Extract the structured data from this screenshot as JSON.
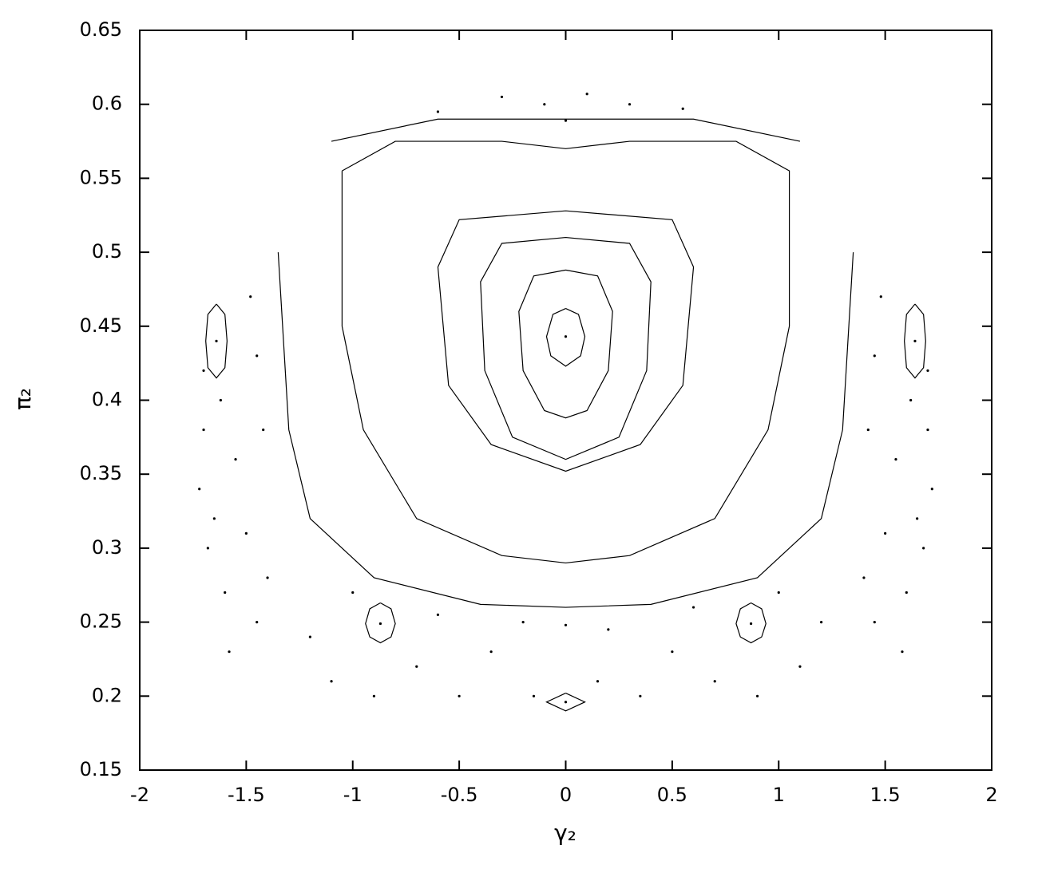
{
  "chart_data": {
    "type": "scatter",
    "xlabel": "γ₂",
    "ylabel": "π₂",
    "xlim": [
      -2,
      2
    ],
    "ylim": [
      0.15,
      0.65
    ],
    "xticks": [
      -2,
      -1.5,
      -1,
      -0.5,
      0,
      0.5,
      1,
      1.5,
      2
    ],
    "yticks": [
      0.15,
      0.2,
      0.25,
      0.3,
      0.35,
      0.4,
      0.45,
      0.5,
      0.55,
      0.6,
      0.65
    ],
    "color": "#000000",
    "series": [
      {
        "style": "line",
        "x": [
          0,
          0.06,
          0.09,
          0.07,
          0,
          -0.07,
          -0.09,
          -0.06,
          0
        ],
        "y": [
          0.462,
          0.458,
          0.443,
          0.43,
          0.423,
          0.43,
          0.443,
          0.458,
          0.462
        ]
      },
      {
        "style": "line",
        "x": [
          0,
          0.15,
          0.22,
          0.2,
          0.1,
          0,
          -0.1,
          -0.2,
          -0.22,
          -0.15,
          0
        ],
        "y": [
          0.488,
          0.484,
          0.46,
          0.42,
          0.393,
          0.388,
          0.393,
          0.42,
          0.46,
          0.484,
          0.488
        ]
      },
      {
        "style": "line",
        "x": [
          0,
          0.3,
          0.4,
          0.38,
          0.25,
          0,
          -0.25,
          -0.38,
          -0.4,
          -0.3,
          0
        ],
        "y": [
          0.51,
          0.506,
          0.48,
          0.42,
          0.375,
          0.36,
          0.375,
          0.42,
          0.48,
          0.506,
          0.51
        ]
      },
      {
        "style": "line",
        "x": [
          0,
          0.5,
          0.6,
          0.55,
          0.35,
          0,
          -0.35,
          -0.55,
          -0.6,
          -0.5,
          0
        ],
        "y": [
          0.528,
          0.522,
          0.49,
          0.41,
          0.37,
          0.352,
          0.37,
          0.41,
          0.49,
          0.522,
          0.528
        ]
      },
      {
        "style": "line",
        "x": [
          -1.05,
          -1.05,
          -0.95,
          -0.7,
          -0.3,
          0,
          0.3,
          0.7,
          0.95,
          1.05,
          1.05,
          0.8,
          0.3,
          0,
          -0.3,
          -0.8,
          -1.05
        ],
        "y": [
          0.555,
          0.45,
          0.38,
          0.32,
          0.295,
          0.29,
          0.295,
          0.32,
          0.38,
          0.45,
          0.555,
          0.575,
          0.575,
          0.57,
          0.575,
          0.575,
          0.555
        ]
      },
      {
        "style": "line",
        "x": [
          -1.35,
          -1.3,
          -1.2,
          -0.9,
          -0.4,
          0,
          0.4,
          0.9,
          1.2,
          1.3,
          1.35
        ],
        "y": [
          0.5,
          0.38,
          0.32,
          0.28,
          0.262,
          0.26,
          0.262,
          0.28,
          0.32,
          0.38,
          0.5
        ]
      },
      {
        "style": "line",
        "x": [
          -1.1,
          -0.6,
          0,
          0.6,
          1.1
        ],
        "y": [
          0.575,
          0.59,
          0.59,
          0.59,
          0.575
        ]
      },
      {
        "style": "line",
        "x": [
          -1.64,
          -1.6,
          -1.59,
          -1.6,
          -1.64,
          -1.68,
          -1.69,
          -1.68,
          -1.64
        ],
        "y": [
          0.465,
          0.458,
          0.44,
          0.422,
          0.415,
          0.422,
          0.44,
          0.458,
          0.465
        ]
      },
      {
        "style": "line",
        "x": [
          1.64,
          1.68,
          1.69,
          1.68,
          1.64,
          1.6,
          1.59,
          1.6,
          1.64
        ],
        "y": [
          0.465,
          0.458,
          0.44,
          0.422,
          0.415,
          0.422,
          0.44,
          0.458,
          0.465
        ]
      },
      {
        "style": "line",
        "x": [
          -0.87,
          -0.82,
          -0.8,
          -0.82,
          -0.87,
          -0.92,
          -0.94,
          -0.92,
          -0.87
        ],
        "y": [
          0.263,
          0.259,
          0.249,
          0.24,
          0.236,
          0.24,
          0.249,
          0.259,
          0.263
        ]
      },
      {
        "style": "line",
        "x": [
          0.87,
          0.92,
          0.94,
          0.92,
          0.87,
          0.82,
          0.8,
          0.82,
          0.87
        ],
        "y": [
          0.263,
          0.259,
          0.249,
          0.24,
          0.236,
          0.24,
          0.249,
          0.259,
          0.263
        ]
      },
      {
        "style": "line",
        "x": [
          0,
          0.09,
          0,
          -0.09,
          0
        ],
        "y": [
          0.202,
          0.196,
          0.19,
          0.196,
          0.202
        ]
      },
      {
        "style": "dot",
        "x": [
          0,
          -1.64,
          1.64,
          -0.87,
          0.87,
          0,
          0,
          0
        ],
        "y": [
          0.443,
          0.44,
          0.44,
          0.249,
          0.249,
          0.196,
          0.248,
          0.589
        ]
      },
      {
        "style": "dot",
        "x": [
          -1.7,
          -1.72,
          -1.68,
          -1.6,
          -1.55,
          -1.5,
          -1.45,
          -1.4,
          -1.62,
          -1.7,
          -1.45,
          -1.42,
          -1.48,
          -1.65,
          -1.58,
          -1.2,
          -1.1,
          -1.0,
          -0.9,
          -0.7,
          -0.6,
          -0.5,
          -0.35,
          -0.2,
          -0.15,
          0.15,
          0.2,
          0.35,
          0.5,
          0.6,
          0.7,
          0.9,
          1.0,
          1.1,
          1.2,
          1.7,
          1.72,
          1.68,
          1.6,
          1.55,
          1.5,
          1.45,
          1.4,
          1.62,
          1.7,
          1.45,
          1.42,
          1.48,
          1.65,
          1.58,
          -0.6,
          -0.3,
          -0.1,
          0.1,
          0.3,
          0.55
        ],
        "y": [
          0.38,
          0.34,
          0.3,
          0.27,
          0.36,
          0.31,
          0.25,
          0.28,
          0.4,
          0.42,
          0.43,
          0.38,
          0.47,
          0.32,
          0.23,
          0.24,
          0.21,
          0.27,
          0.2,
          0.22,
          0.255,
          0.2,
          0.23,
          0.25,
          0.2,
          0.21,
          0.245,
          0.2,
          0.23,
          0.26,
          0.21,
          0.2,
          0.27,
          0.22,
          0.25,
          0.38,
          0.34,
          0.3,
          0.27,
          0.36,
          0.31,
          0.25,
          0.28,
          0.4,
          0.42,
          0.43,
          0.38,
          0.47,
          0.32,
          0.23,
          0.595,
          0.605,
          0.6,
          0.607,
          0.6,
          0.597
        ]
      }
    ]
  }
}
